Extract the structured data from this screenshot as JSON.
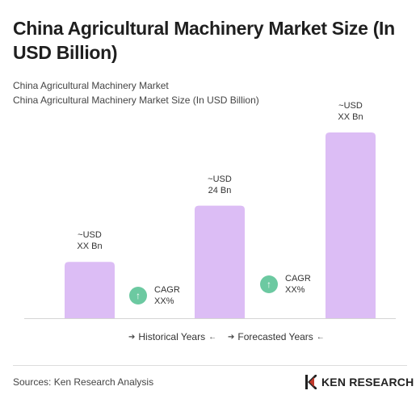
{
  "header": {
    "title": "China Agricultural Machinery Market Size (In USD Billion)",
    "subtitle_1": "China Agricultural Machinery Market",
    "subtitle_2": "China Agricultural Machinery Market Size (In USD Billion)"
  },
  "chart_data": {
    "type": "bar",
    "categories": [
      "",
      "",
      ""
    ],
    "values": [
      1,
      2,
      3.3
    ],
    "value_labels": [
      [
        "~USD",
        "XX Bn"
      ],
      [
        "~USD",
        "24 Bn"
      ],
      [
        "~USD",
        "XX Bn"
      ]
    ],
    "bar_color": "#dcbdf5",
    "cagr": [
      {
        "label": "CAGR",
        "value": "XX%",
        "icon": "up-arrow-icon",
        "color": "#6cc9a1"
      },
      {
        "label": "CAGR",
        "value": "XX%",
        "icon": "up-arrow-icon",
        "color": "#6cc9a1"
      }
    ],
    "periods": [
      "Historical Years",
      "Forecasted Years"
    ],
    "grid": false
  },
  "footer": {
    "source": "Sources: Ken Research Analysis",
    "brand": "KEN RESEARCH",
    "brand_logo": "ken-research-logo-icon"
  }
}
